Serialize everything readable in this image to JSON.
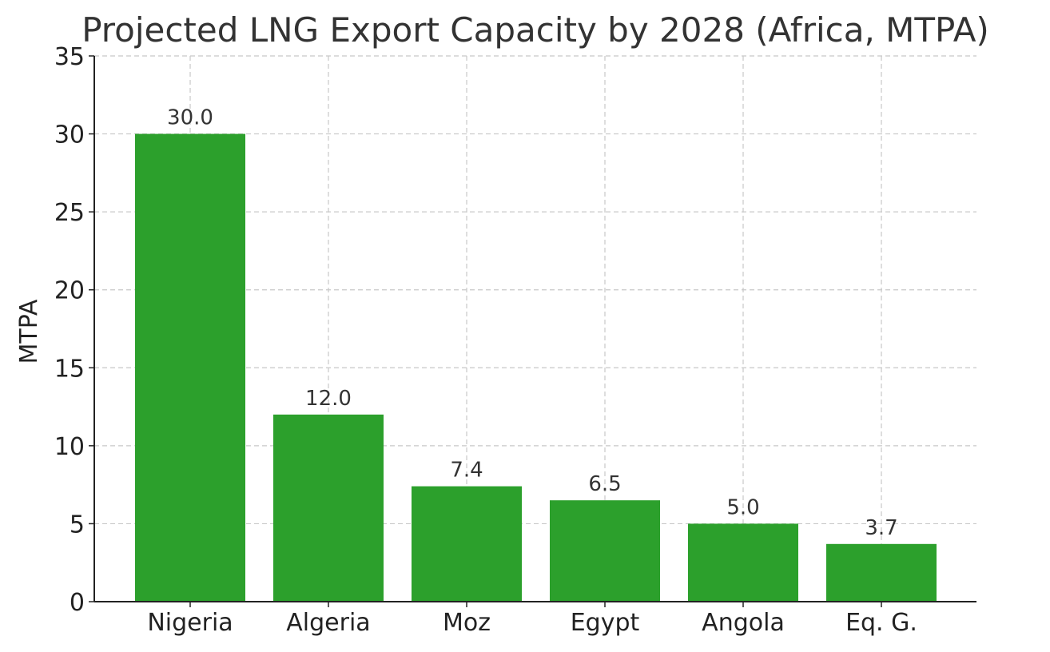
{
  "chart_data": {
    "type": "bar",
    "title": "Projected LNG Export Capacity by 2028 (Africa, MTPA)",
    "xlabel": "",
    "ylabel": "MTPA",
    "categories": [
      "Nigeria",
      "Algeria",
      "Moz",
      "Egypt",
      "Angola",
      "Eq. G."
    ],
    "values": [
      30.0,
      12.0,
      7.4,
      6.5,
      5.0,
      3.7
    ],
    "value_labels": [
      "30.0",
      "12.0",
      "7.4",
      "6.5",
      "5.0",
      "3.7"
    ],
    "ylim": [
      0,
      35
    ],
    "yticks": [
      0,
      5,
      10,
      15,
      20,
      25,
      30,
      35
    ],
    "grid": true,
    "legend": "none",
    "bar_color": "#2ca02c"
  }
}
